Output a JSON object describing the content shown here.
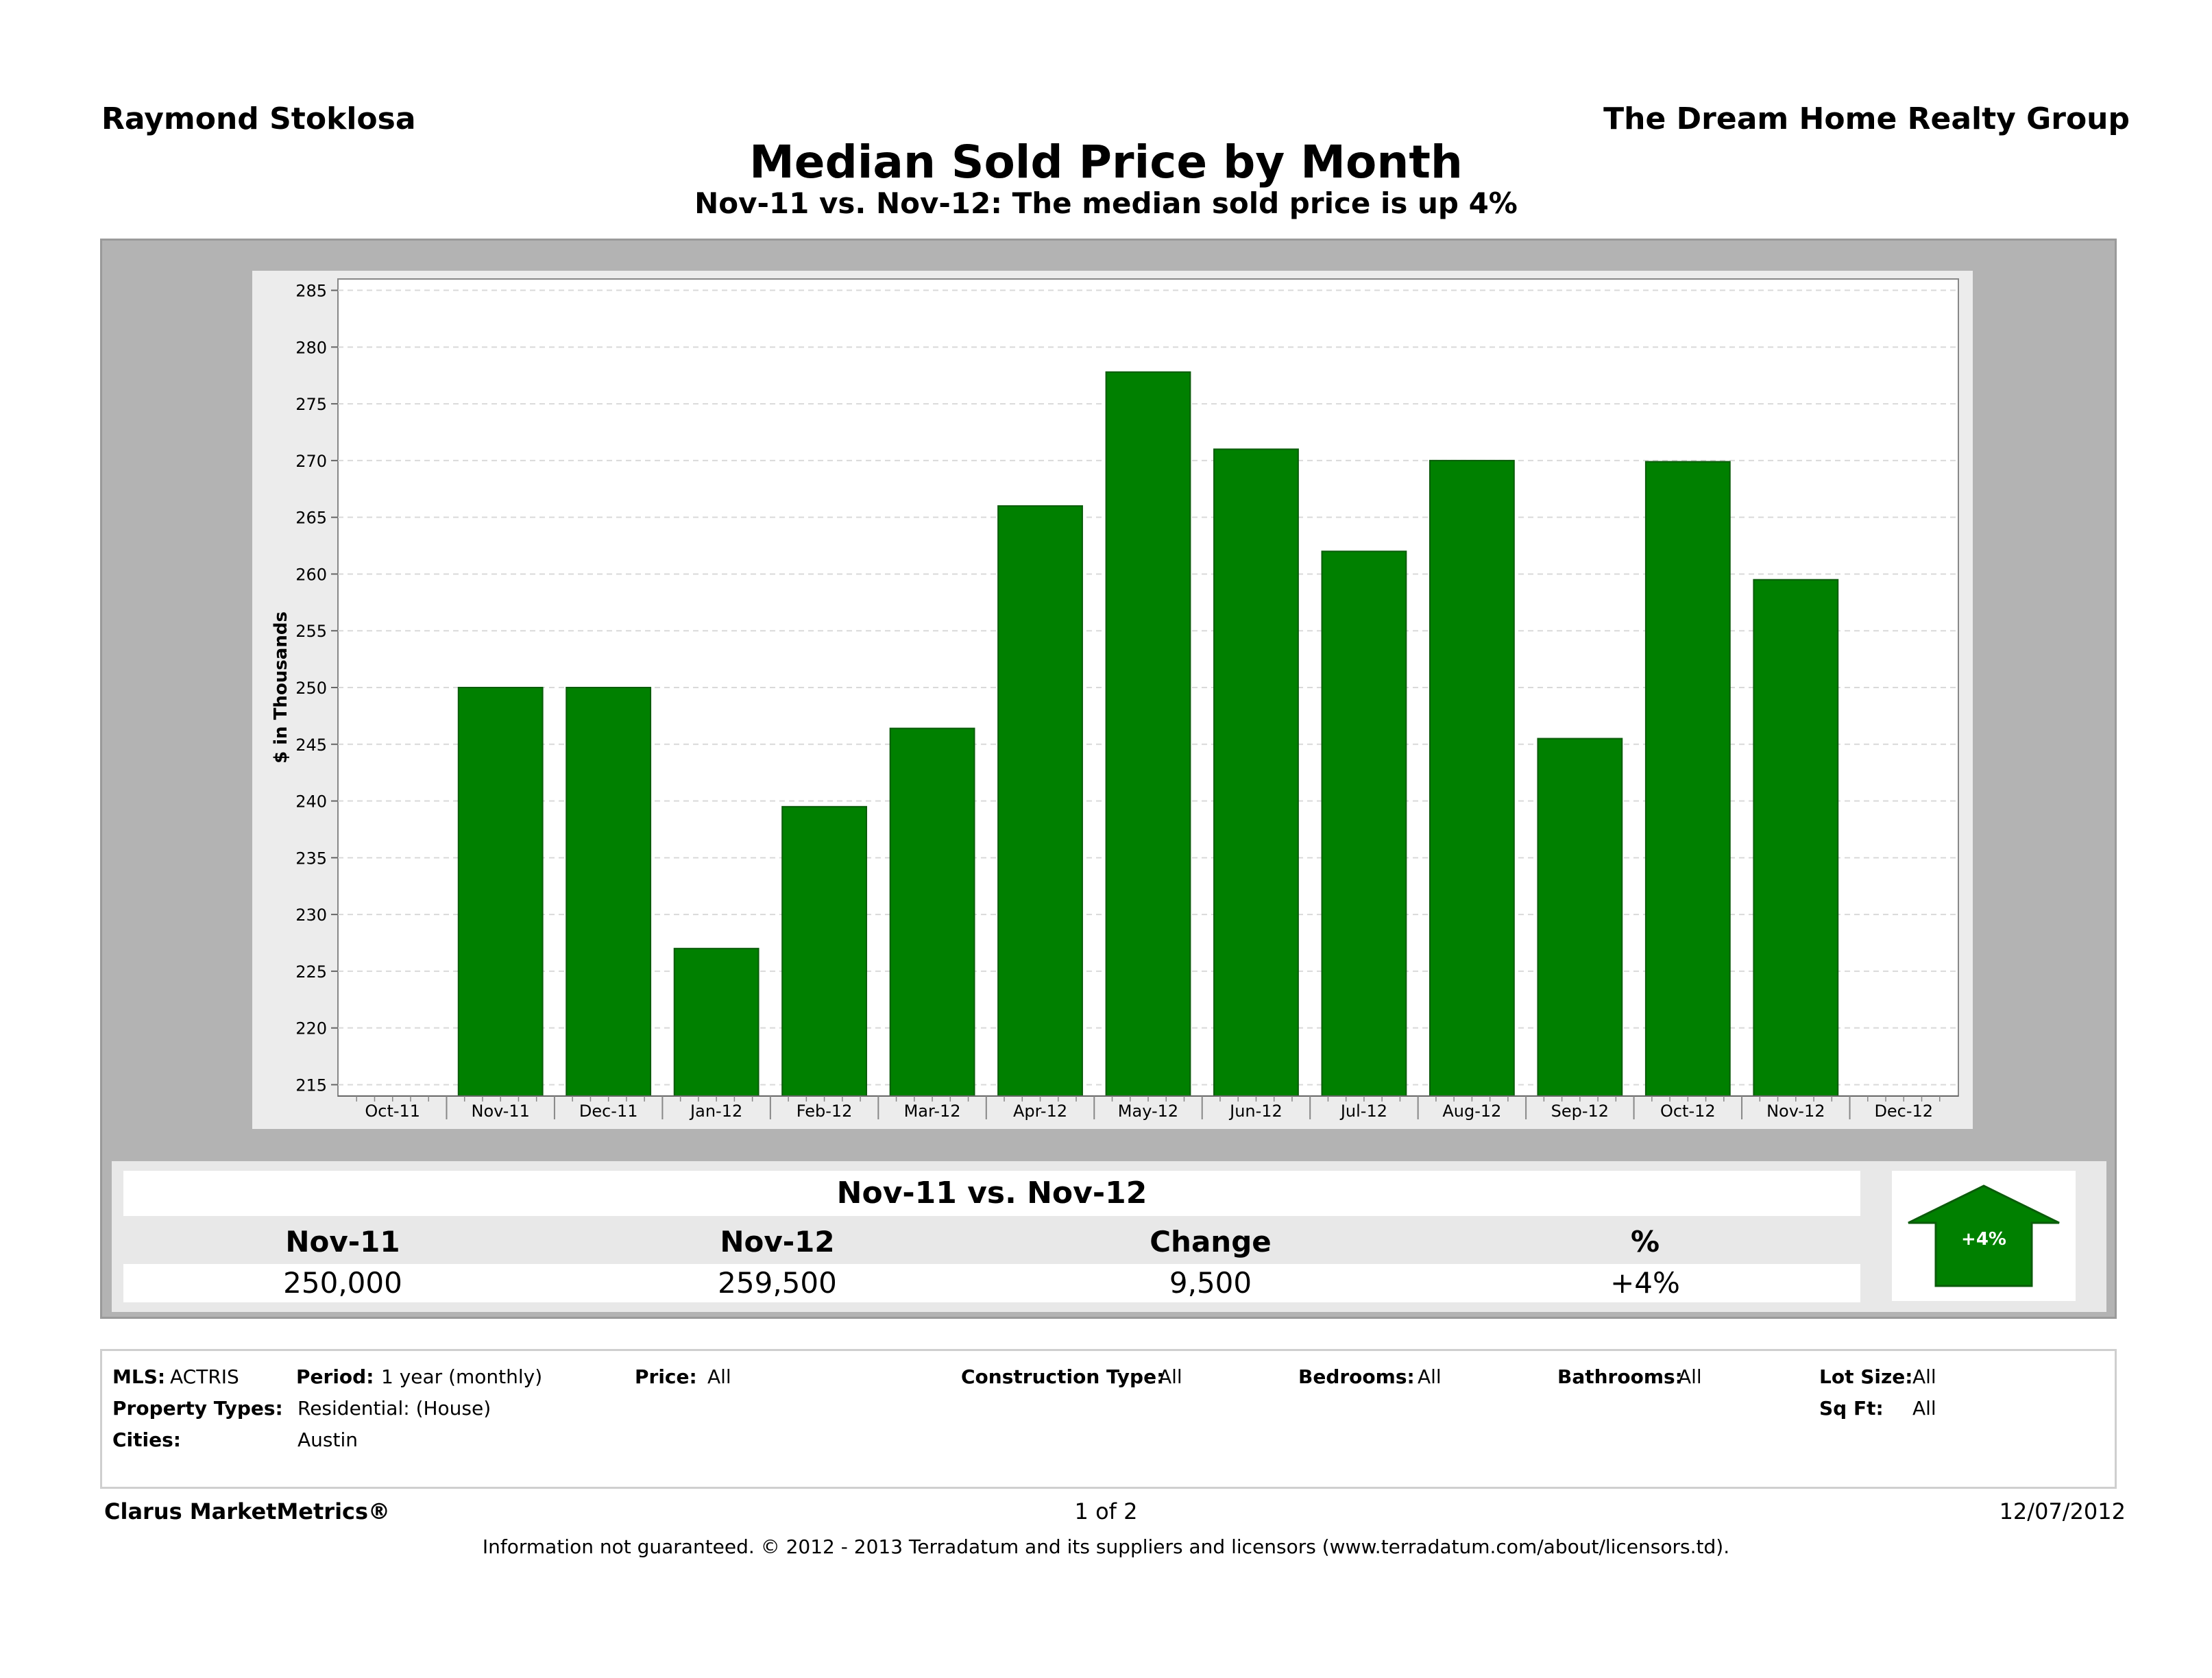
{
  "header": {
    "agent": "Raymond Stoklosa",
    "company": "The Dream Home Realty Group",
    "title": "Median Sold Price by Month",
    "subtitle": "Nov-11 vs. Nov-12:  The median sold price is up 4%"
  },
  "chart_data": {
    "type": "bar",
    "ylabel": "$ in Thousands",
    "xlabel": "",
    "ylim": [
      214,
      286
    ],
    "yticks": [
      215,
      220,
      225,
      230,
      235,
      240,
      245,
      250,
      255,
      260,
      265,
      270,
      275,
      280,
      285
    ],
    "x_tick_labels": [
      "Oct-11",
      "Nov-11",
      "Dec-11",
      "Jan-12",
      "Feb-12",
      "Mar-12",
      "Apr-12",
      "May-12",
      "Jun-12",
      "Jul-12",
      "Aug-12",
      "Sep-12",
      "Oct-12",
      "Nov-12",
      "Dec-12"
    ],
    "categories": [
      "Nov-11",
      "Dec-11",
      "Jan-12",
      "Feb-12",
      "Mar-12",
      "Apr-12",
      "May-12",
      "Jun-12",
      "Jul-12",
      "Aug-12",
      "Sep-12",
      "Oct-12",
      "Nov-12"
    ],
    "values": [
      250,
      250,
      227,
      239.5,
      246.4,
      266,
      277.8,
      271,
      262,
      270,
      245.5,
      269.9,
      259.5
    ],
    "grid": true,
    "bar_color": "#008000"
  },
  "comparison": {
    "title": "Nov-11 vs. Nov-12",
    "headers": [
      "Nov-11",
      "Nov-12",
      "Change",
      "%"
    ],
    "values": [
      "250,000",
      "259,500",
      "9,500",
      "+4%"
    ],
    "badge": "+4%",
    "badge_color": "#008000"
  },
  "params": {
    "mls_label": "MLS:",
    "mls_value": "ACTRIS",
    "period_label": "Period:",
    "period_value": "1 year (monthly)",
    "price_label": "Price:",
    "price_value": "All",
    "construction_label": "Construction Type:",
    "construction_value": "All",
    "bedrooms_label": "Bedrooms:",
    "bedrooms_value": "All",
    "bathrooms_label": "Bathrooms:",
    "bathrooms_value": "All",
    "lotsize_label": "Lot Size:",
    "lotsize_value": "All",
    "proptypes_label": "Property Types:",
    "proptypes_value": "Residential: (House)",
    "sqft_label": "Sq Ft:",
    "sqft_value": "All",
    "cities_label": "Cities:",
    "cities_value": "Austin"
  },
  "footer": {
    "brand": "Clarus MarketMetrics®",
    "page": "1 of 2",
    "date": "12/07/2012",
    "disclaimer": "Information not guaranteed.  © 2012 - 2013 Terradatum and its suppliers and licensors (www.terradatum.com/about/licensors.td)."
  }
}
